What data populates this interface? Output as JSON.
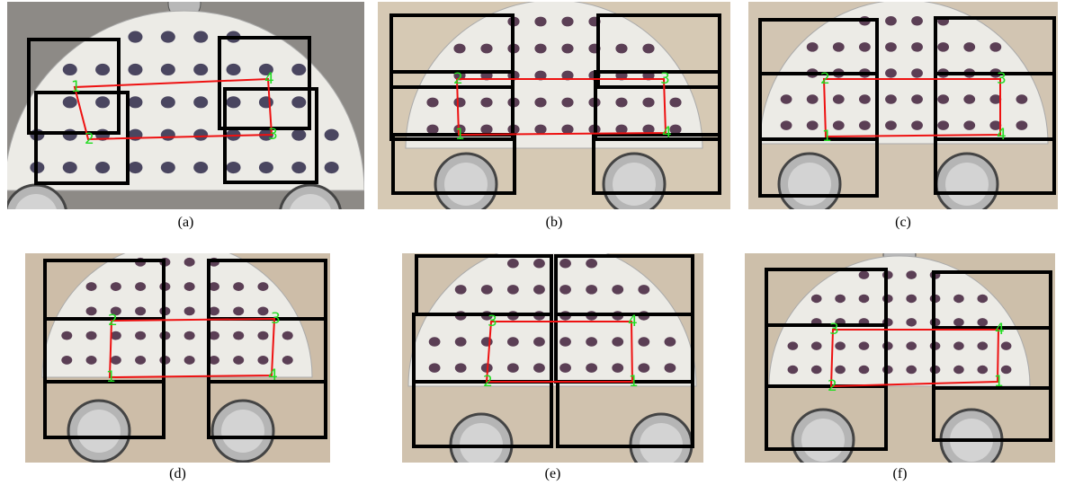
{
  "panels": [
    {
      "caption": "(a)",
      "points": [
        "1",
        "2",
        "3",
        "4"
      ]
    },
    {
      "caption": "(b)",
      "points": [
        "1",
        "2",
        "3",
        "4"
      ]
    },
    {
      "caption": "(c)",
      "points": [
        "1",
        "2",
        "3",
        "4"
      ]
    },
    {
      "caption": "(d)",
      "points": [
        "1",
        "2",
        "3",
        "4"
      ]
    },
    {
      "caption": "(e)",
      "points": [
        "1",
        "2",
        "3",
        "4"
      ]
    },
    {
      "caption": "(f)",
      "points": [
        "1",
        "2",
        "3",
        "4"
      ]
    }
  ]
}
